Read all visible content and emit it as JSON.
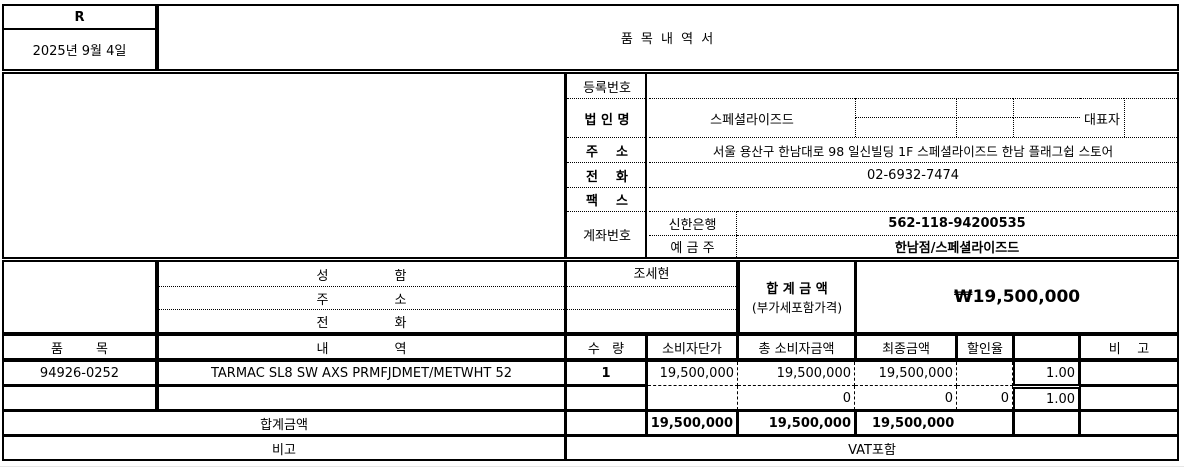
{
  "header": {
    "mark": "R",
    "date": "2025년 9월 4일",
    "title": "품 목 내 역 서"
  },
  "supplier": {
    "reg_no_label": "등록번호",
    "reg_no": "",
    "corp_name_label": "법 인 명",
    "corp_name": "스페셜라이즈드",
    "rep_label": "대표자",
    "address_label": "주    소",
    "address": "서울 용산구 한남대로 98 일신빌딩 1F 스페셜라이즈드 한남 플래그쉽 스토어",
    "phone_label": "전    화",
    "phone": "02-6932-7474",
    "fax_label": "팩    스",
    "fax": "",
    "account_label": "계좌번호",
    "bank": "신한은행",
    "account_no": "562-118-94200535",
    "holder_label": "예 금 주",
    "holder": "한남점/스페셜라이즈드"
  },
  "customer": {
    "name_label": "성                함",
    "name": "조세현",
    "address_label": "주                소",
    "phone_label": "전                화",
    "total_label": "합 계 금 액",
    "total_note": "(부가세포함가격)",
    "total": "₩19,500,000"
  },
  "table": {
    "headers": [
      "품        목",
      "내                역",
      "수   량",
      "소비자단가",
      "총 소비자금액",
      "최종금액",
      "할인율",
      "",
      "비    고"
    ],
    "rows": [
      {
        "code": "94926-0252",
        "desc": "TARMAC SL8 SW AXS PRMFJDMET/METWHT 52",
        "qty": "1",
        "unit": "19,500,000",
        "total": "19,500,000",
        "final": "19,500,000",
        "discount": "",
        "ratio": "1.00"
      },
      {
        "code": "",
        "desc": "",
        "qty": "",
        "unit": "",
        "total": "0",
        "final": "0",
        "discount": "0",
        "ratio": "1.00"
      }
    ],
    "sum_label": "합계금액",
    "sum_unit": "19,500,000",
    "sum_total": "19,500,000",
    "sum_final": "19,500,000",
    "note_label": "비고",
    "note": "VAT포함"
  }
}
